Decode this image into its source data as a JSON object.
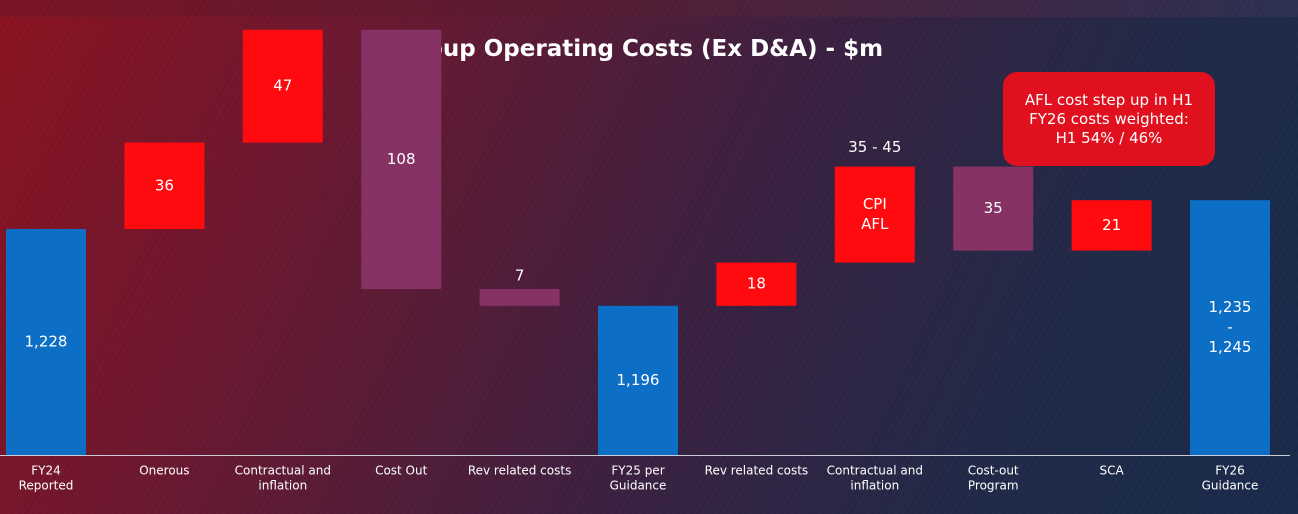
{
  "colors": {
    "total": "#0d6ec6",
    "increase": "#ff0a0f",
    "decrease": "#873264",
    "axis": "#c9ccd6",
    "text": "#ffffff",
    "callout_bg": "#e0101f"
  },
  "callout": {
    "lines": [
      "AFL cost step up in H1",
      "FY26 costs weighted:",
      "H1 54% / 46%"
    ]
  },
  "chart_data": {
    "type": "waterfall",
    "title": "Group Operating Costs (Ex D&A) - $m",
    "grid": false,
    "bars": [
      {
        "category": [
          "FY24",
          "Reported"
        ],
        "kind": "total",
        "base": 0,
        "value": 1228,
        "labels": [
          "1,228"
        ]
      },
      {
        "category": [
          "Onerous"
        ],
        "kind": "increase",
        "base": 1228,
        "value": 36,
        "labels": [
          "36"
        ]
      },
      {
        "category": [
          "Contractual and",
          "inflation"
        ],
        "kind": "increase",
        "base": 1264,
        "value": 47,
        "labels": [
          "47"
        ]
      },
      {
        "category": [
          "Cost Out"
        ],
        "kind": "decrease",
        "base": 1311,
        "value": -108,
        "labels": [
          "108"
        ]
      },
      {
        "category": [
          "Rev related costs"
        ],
        "kind": "decrease",
        "base": 1203,
        "value": -7,
        "labels": [
          "7"
        ],
        "label_position": "above"
      },
      {
        "category": [
          "FY25 per",
          "Guidance"
        ],
        "kind": "total",
        "base": 0,
        "value": 1196,
        "labels": [
          "1,196"
        ]
      },
      {
        "category": [
          "Rev related costs"
        ],
        "kind": "increase",
        "base": 1196,
        "value": 18,
        "labels": [
          "18"
        ]
      },
      {
        "category": [
          "Contractual and",
          "inflation"
        ],
        "kind": "increase",
        "base": 1214,
        "value": 40,
        "labels": [
          "CPI",
          "AFL"
        ],
        "range_label": "35 - 45"
      },
      {
        "category": [
          "Cost-out",
          "Program"
        ],
        "kind": "decrease",
        "base": 1254,
        "value": -35,
        "labels": [
          "35"
        ]
      },
      {
        "category": [
          "SCA"
        ],
        "kind": "increase",
        "base": 1219,
        "value": 21,
        "labels": [
          "21"
        ]
      },
      {
        "category": [
          "FY26",
          "Guidance"
        ],
        "kind": "total",
        "base": 0,
        "value": 1240,
        "labels": [
          "1,235",
          "-",
          "1,245"
        ]
      }
    ]
  }
}
